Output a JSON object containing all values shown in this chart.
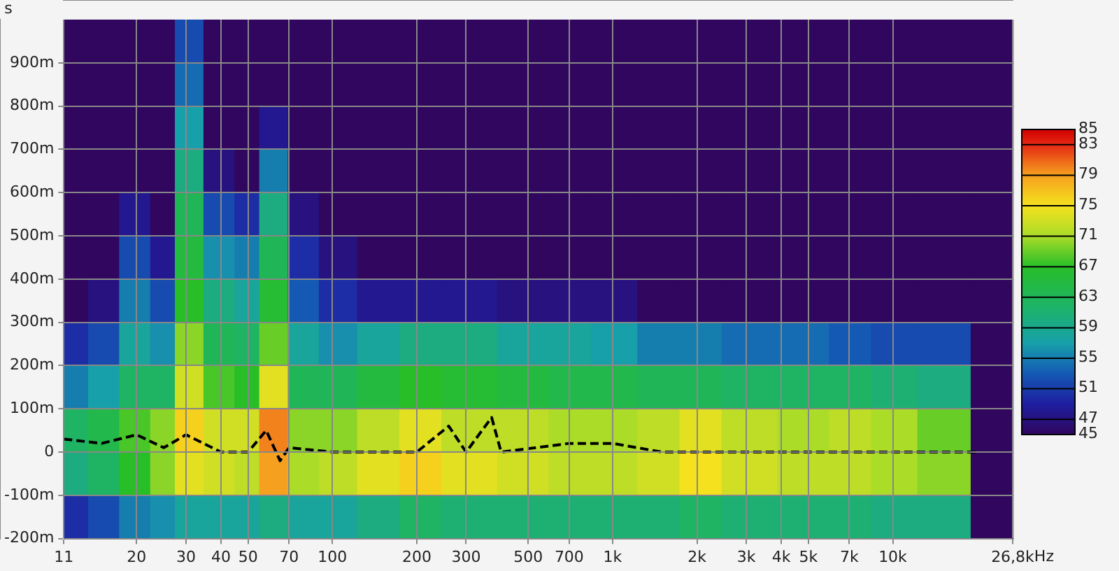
{
  "chart_data": {
    "type": "heatmap",
    "ylabel": "s",
    "x": [
      12,
      15,
      20,
      25,
      30,
      40,
      50,
      60,
      80,
      100,
      150,
      200,
      300,
      500,
      700,
      1000,
      1500,
      2000,
      3000,
      5000,
      7000,
      10000,
      15000,
      24000
    ],
    "y": [
      950,
      850,
      750,
      650,
      550,
      450,
      350,
      250,
      150,
      50,
      -50,
      -150
    ],
    "cells": [
      [
        45,
        45,
        45,
        45,
        52,
        45,
        45,
        45,
        45,
        45,
        45,
        45,
        45,
        45,
        45,
        45,
        45,
        45,
        45,
        45,
        45,
        45,
        45,
        45
      ],
      [
        45,
        45,
        45,
        45,
        54,
        45,
        45,
        45,
        45,
        45,
        45,
        45,
        45,
        45,
        45,
        45,
        45,
        45,
        45,
        45,
        45,
        45,
        45,
        45
      ],
      [
        45,
        45,
        45,
        45,
        57,
        45,
        45,
        48,
        45,
        45,
        45,
        45,
        45,
        45,
        45,
        45,
        45,
        45,
        45,
        45,
        45,
        45,
        45,
        45
      ],
      [
        45,
        45,
        45,
        45,
        60,
        47,
        45,
        55,
        45,
        45,
        45,
        45,
        45,
        45,
        45,
        45,
        45,
        45,
        45,
        45,
        45,
        45,
        45,
        45
      ],
      [
        45,
        45,
        48,
        45,
        63,
        52,
        50,
        60,
        47,
        45,
        45,
        45,
        45,
        45,
        45,
        45,
        45,
        45,
        45,
        45,
        45,
        45,
        45,
        45
      ],
      [
        45,
        45,
        52,
        48,
        65,
        56,
        55,
        63,
        50,
        47,
        45,
        45,
        45,
        45,
        45,
        45,
        45,
        45,
        45,
        45,
        45,
        45,
        45,
        45
      ],
      [
        45,
        47,
        55,
        52,
        67,
        60,
        58,
        66,
        53,
        50,
        48,
        48,
        48,
        47,
        47,
        47,
        45,
        45,
        45,
        45,
        45,
        45,
        45,
        45
      ],
      [
        50,
        52,
        58,
        56,
        70,
        63,
        62,
        69,
        58,
        56,
        58,
        60,
        60,
        58,
        58,
        57,
        55,
        55,
        54,
        54,
        53,
        52,
        52,
        45
      ],
      [
        55,
        57,
        62,
        62,
        73,
        68,
        67,
        74,
        63,
        63,
        65,
        67,
        66,
        65,
        64,
        64,
        63,
        63,
        62,
        62,
        62,
        61,
        60,
        45
      ],
      [
        62,
        64,
        68,
        70,
        76,
        73,
        73,
        80,
        70,
        70,
        72,
        74,
        72,
        72,
        71,
        71,
        72,
        74,
        72,
        71,
        72,
        71,
        69,
        45
      ],
      [
        60,
        62,
        67,
        70,
        74,
        73,
        72,
        79,
        71,
        72,
        74,
        76,
        74,
        73,
        72,
        72,
        73,
        75,
        73,
        72,
        72,
        71,
        70,
        45
      ],
      [
        50,
        52,
        55,
        56,
        58,
        58,
        58,
        60,
        58,
        58,
        60,
        62,
        61,
        61,
        61,
        61,
        61,
        62,
        61,
        61,
        61,
        60,
        60,
        45
      ]
    ],
    "clim": [
      45,
      85
    ],
    "cticks": [
      45,
      47,
      51,
      55,
      59,
      63,
      67,
      71,
      75,
      79,
      83,
      85
    ],
    "xlim": [
      11,
      26800
    ],
    "xticks": [
      11,
      20,
      30,
      40,
      50,
      70,
      100,
      200,
      300,
      500,
      700,
      {
        "value": 1000,
        "label": "1k"
      },
      {
        "value": 2000,
        "label": "2k"
      },
      {
        "value": 3000,
        "label": "3k"
      },
      {
        "value": 4000,
        "label": "4k"
      },
      {
        "value": 5000,
        "label": "5k"
      },
      {
        "value": 7000,
        "label": "7k"
      },
      {
        "value": 10000,
        "label": "10k"
      },
      {
        "value": 26800,
        "label": "26,8k"
      }
    ],
    "xlabel": "Hz",
    "ylim": [
      -200,
      1000
    ],
    "yticks": [
      {
        "value": -200,
        "label": "-200m"
      },
      {
        "value": -100,
        "label": "-100m"
      },
      0,
      {
        "value": 100,
        "label": "100m"
      },
      {
        "value": 200,
        "label": "200m"
      },
      {
        "value": 300,
        "label": "300m"
      },
      {
        "value": 400,
        "label": "400m"
      },
      {
        "value": 500,
        "label": "500m"
      },
      {
        "value": 600,
        "label": "600m"
      },
      {
        "value": 700,
        "label": "700m"
      },
      {
        "value": 800,
        "label": "800m"
      },
      {
        "value": 900,
        "label": "900m"
      }
    ],
    "log": "x",
    "grid": true,
    "series": [
      {
        "type": "line",
        "color": "#000000",
        "line_style": "dashed",
        "marker": "none",
        "x": [
          11,
          15,
          20,
          25,
          30,
          40,
          50,
          58,
          65,
          70,
          100,
          200,
          260,
          300,
          370,
          400,
          700,
          1000,
          1500,
          3000,
          10000,
          20000
        ],
        "values": [
          30,
          20,
          40,
          10,
          40,
          0,
          0,
          50,
          -20,
          10,
          0,
          0,
          60,
          0,
          80,
          0,
          20,
          20,
          0,
          0,
          0,
          0
        ]
      }
    ]
  }
}
